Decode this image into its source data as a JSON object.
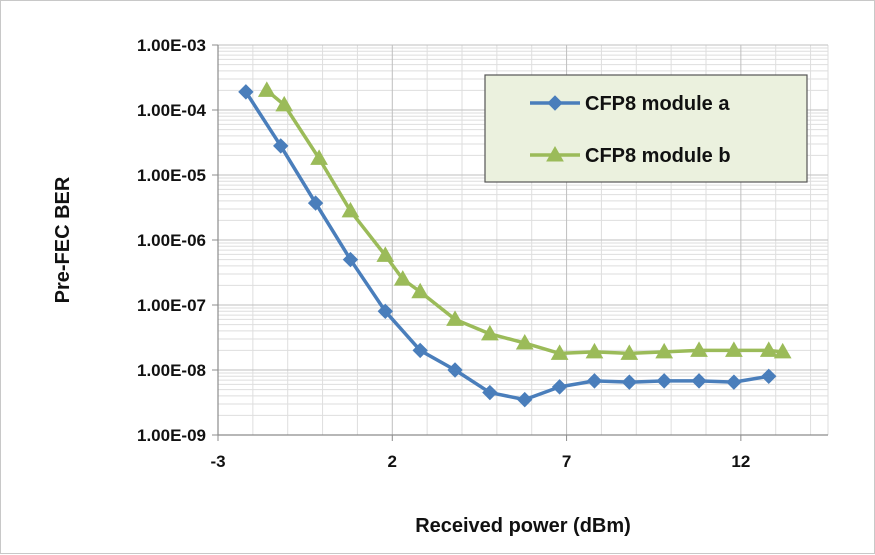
{
  "chart_data": {
    "type": "line",
    "xlabel": "Received power (dBm)",
    "ylabel": "Pre-FEC BER",
    "xlim": [
      -3,
      14.5
    ],
    "ylim": [
      1e-09,
      0.001
    ],
    "y_scale": "log",
    "x_ticks": [
      "-3",
      "2",
      "7",
      "12"
    ],
    "y_ticks": [
      "1.00E-03",
      "1.00E-04",
      "1.00E-05",
      "1.00E-06",
      "1.00E-07",
      "1.00E-08",
      "1.00E-09"
    ],
    "grid": true,
    "legend_position": "top-right",
    "series": [
      {
        "name": "CFP8 module a",
        "color": "#4a7ebb",
        "marker": "diamond",
        "x": [
          -2.2,
          -1.2,
          -0.2,
          0.8,
          1.8,
          2.8,
          3.8,
          4.8,
          5.8,
          6.8,
          7.8,
          8.8,
          9.8,
          10.8,
          11.8,
          12.8
        ],
        "y": [
          0.00019,
          2.8e-05,
          3.7e-06,
          5e-07,
          8e-08,
          2e-08,
          1e-08,
          4.5e-09,
          3.5e-09,
          5.5e-09,
          6.8e-09,
          6.5e-09,
          6.8e-09,
          6.8e-09,
          6.5e-09,
          8e-09
        ]
      },
      {
        "name": "CFP8 module b",
        "color": "#9bbb59",
        "marker": "triangle",
        "x": [
          -1.6,
          -1.1,
          -0.1,
          0.8,
          1.8,
          2.3,
          2.8,
          3.8,
          4.8,
          5.8,
          6.8,
          7.8,
          8.8,
          9.8,
          10.8,
          11.8,
          12.8,
          13.2
        ],
        "y": [
          0.0002,
          0.00012,
          1.8e-05,
          2.8e-06,
          5.8e-07,
          2.5e-07,
          1.6e-07,
          6e-08,
          3.6e-08,
          2.6e-08,
          1.8e-08,
          1.9e-08,
          1.8e-08,
          1.9e-08,
          2e-08,
          2e-08,
          2e-08,
          1.9e-08
        ]
      }
    ]
  }
}
